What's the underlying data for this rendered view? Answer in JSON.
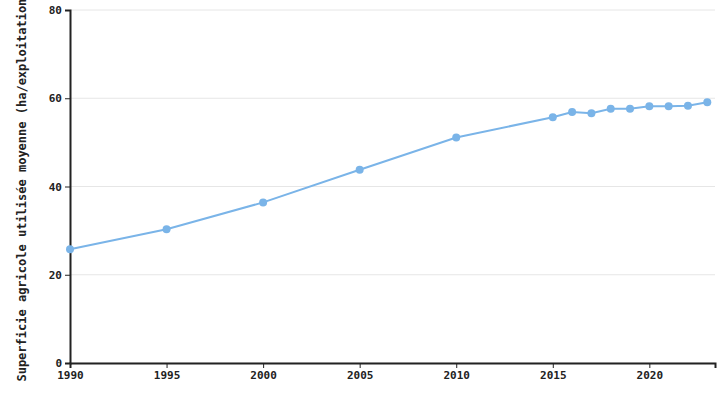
{
  "chart_data": {
    "type": "line",
    "y_label": "Superficie agricole utilisée moyenne (ha/exploitation)",
    "x": [
      1990,
      1995,
      2000,
      2005,
      2010,
      2015,
      2016,
      2017,
      2018,
      2019,
      2020,
      2021,
      2022,
      2023
    ],
    "values": [
      25.8,
      30.3,
      36.4,
      43.8,
      51.1,
      55.7,
      56.9,
      56.6,
      57.6,
      57.6,
      58.2,
      58.2,
      58.3,
      59.1
    ],
    "color": "#7ab4e8",
    "marker": "circle",
    "xlim": [
      1990,
      2023.4
    ],
    "xticks": [
      1990,
      1995,
      2000,
      2005,
      2010,
      2015,
      2020
    ],
    "ylim": [
      0,
      80
    ],
    "yticks": [
      0,
      20,
      40,
      60,
      80
    ],
    "grid": true
  }
}
